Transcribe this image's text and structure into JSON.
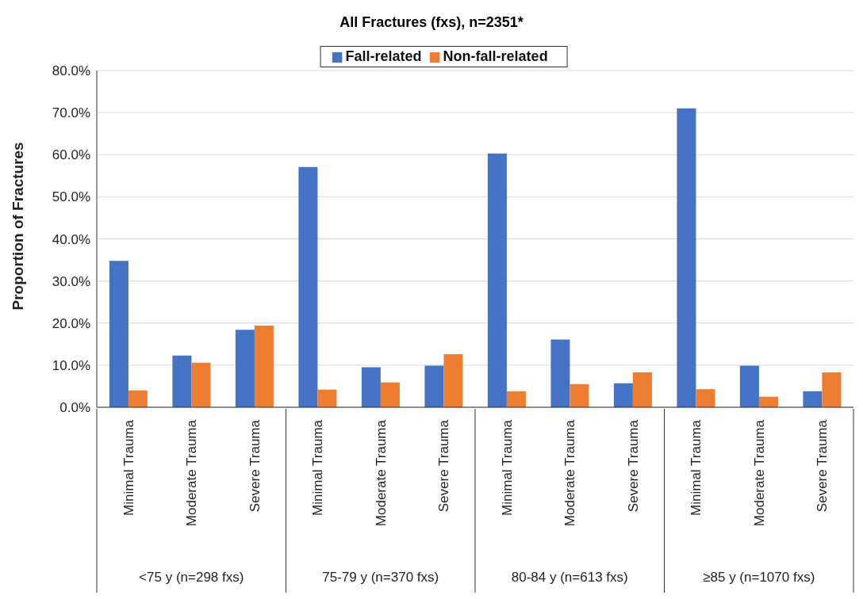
{
  "chart_data": {
    "type": "bar",
    "title": "All Fractures (fxs), n=2351*",
    "ylabel": "Proportion of Fractures",
    "categories": [
      "Minimal Trauma",
      "Moderate Trauma",
      "Severe Trauma",
      "Minimal Trauma",
      "Moderate Trauma",
      "Severe Trauma",
      "Minimal Trauma",
      "Moderate Trauma",
      "Severe Trauma",
      "Minimal Trauma",
      "Moderate Trauma",
      "Severe Trauma"
    ],
    "series": [
      {
        "name": "Fall-related",
        "color": "#4472c4",
        "values": [
          34.8,
          12.3,
          18.4,
          57.1,
          9.5,
          9.9,
          60.3,
          16.1,
          5.7,
          71.0,
          9.9,
          3.8
        ]
      },
      {
        "name": "Non-fall-related",
        "color": "#ed7d31",
        "values": [
          4.0,
          10.6,
          19.4,
          4.2,
          5.9,
          12.6,
          3.8,
          5.5,
          8.3,
          4.3,
          2.5,
          8.3
        ]
      }
    ],
    "annotations": [
      "<75 y (n=298 fxs)",
      "75-79 y (n=370 fxs)",
      "80-84 y (n=613 fxs)",
      "≥85 y (n=1070 fxs)"
    ],
    "ylim": [
      0,
      80
    ],
    "yticks": [
      {
        "value": 0,
        "label": "0.0%"
      },
      {
        "value": 10,
        "label": "10.0%"
      },
      {
        "value": 20,
        "label": "20.0%"
      },
      {
        "value": 30,
        "label": "30.0%"
      },
      {
        "value": 40,
        "label": "40.0%"
      },
      {
        "value": 50,
        "label": "50.0%"
      },
      {
        "value": 60,
        "label": "60.0%"
      },
      {
        "value": 70,
        "label": "70.0%"
      },
      {
        "value": 80,
        "label": "80.0%"
      }
    ],
    "grid": "y",
    "legend": "top"
  }
}
